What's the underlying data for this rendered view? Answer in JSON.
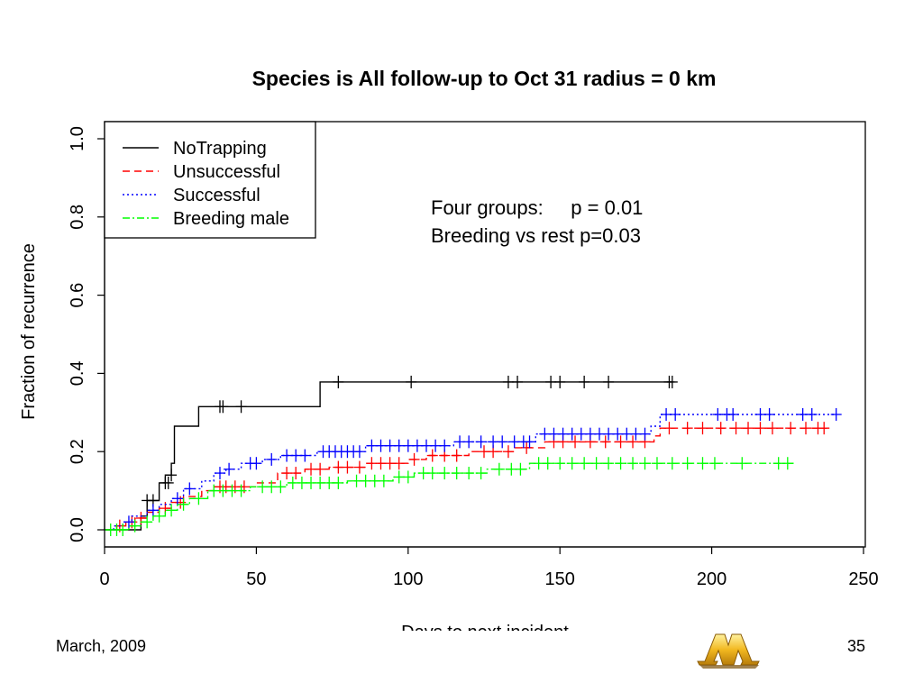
{
  "slide": {
    "footer_date": "March, 2009",
    "page_number": "35"
  },
  "chart_data": {
    "type": "line",
    "title": "Species is All follow-up to Oct 31 radius = 0 km",
    "xlabel": "Days to next incident",
    "ylabel": "Fraction of recurrence",
    "xlim": [
      0,
      250
    ],
    "ylim": [
      0,
      1.0
    ],
    "xticks": [
      0,
      50,
      100,
      150,
      200,
      250
    ],
    "yticks": [
      0.0,
      0.2,
      0.4,
      0.6,
      0.8,
      1.0
    ],
    "grid": false,
    "legend_position": "top-left",
    "annotations": [
      "Four groups:     p = 0.01",
      "Breeding vs rest p=0.03"
    ],
    "series": [
      {
        "name": "NoTrapping",
        "color": "#000000",
        "dash": "",
        "steps": [
          [
            0,
            0
          ],
          [
            12,
            0
          ],
          [
            12,
            0.035
          ],
          [
            14,
            0.035
          ],
          [
            14,
            0.075
          ],
          [
            18,
            0.075
          ],
          [
            18,
            0.12
          ],
          [
            20,
            0.12
          ],
          [
            20,
            0.14
          ],
          [
            22,
            0.14
          ],
          [
            22,
            0.17
          ],
          [
            23,
            0.17
          ],
          [
            23,
            0.265
          ],
          [
            31,
            0.265
          ],
          [
            31,
            0.315
          ],
          [
            71,
            0.315
          ],
          [
            71,
            0.378
          ],
          [
            187,
            0.378
          ]
        ],
        "censors": [
          [
            14,
            0.075
          ],
          [
            16,
            0.075
          ],
          [
            20,
            0.12
          ],
          [
            21,
            0.12
          ],
          [
            22,
            0.14
          ],
          [
            38,
            0.315
          ],
          [
            39,
            0.315
          ],
          [
            45,
            0.315
          ],
          [
            77,
            0.378
          ],
          [
            101,
            0.378
          ],
          [
            133,
            0.378
          ],
          [
            136,
            0.378
          ],
          [
            147,
            0.378
          ],
          [
            150,
            0.378
          ],
          [
            158,
            0.378
          ],
          [
            166,
            0.378
          ],
          [
            186,
            0.378
          ],
          [
            187,
            0.378
          ]
        ]
      },
      {
        "name": "Unsuccessful",
        "color": "#ff0000",
        "dash": "8,5",
        "steps": [
          [
            0,
            0
          ],
          [
            4,
            0
          ],
          [
            4,
            0.01
          ],
          [
            7,
            0.01
          ],
          [
            7,
            0.02
          ],
          [
            10,
            0.02
          ],
          [
            10,
            0.03
          ],
          [
            14,
            0.03
          ],
          [
            14,
            0.045
          ],
          [
            18,
            0.045
          ],
          [
            18,
            0.055
          ],
          [
            22,
            0.055
          ],
          [
            22,
            0.07
          ],
          [
            26,
            0.07
          ],
          [
            26,
            0.085
          ],
          [
            32,
            0.085
          ],
          [
            32,
            0.1
          ],
          [
            36,
            0.1
          ],
          [
            36,
            0.11
          ],
          [
            50,
            0.11
          ],
          [
            50,
            0.12
          ],
          [
            57,
            0.12
          ],
          [
            57,
            0.145
          ],
          [
            66,
            0.145
          ],
          [
            66,
            0.155
          ],
          [
            74,
            0.155
          ],
          [
            74,
            0.16
          ],
          [
            86,
            0.16
          ],
          [
            86,
            0.17
          ],
          [
            100,
            0.17
          ],
          [
            100,
            0.18
          ],
          [
            106,
            0.18
          ],
          [
            106,
            0.19
          ],
          [
            120,
            0.19
          ],
          [
            120,
            0.2
          ],
          [
            135,
            0.2
          ],
          [
            135,
            0.21
          ],
          [
            145,
            0.21
          ],
          [
            145,
            0.225
          ],
          [
            181,
            0.225
          ],
          [
            181,
            0.24
          ],
          [
            183,
            0.24
          ],
          [
            183,
            0.26
          ],
          [
            238,
            0.26
          ]
        ],
        "censors": [
          [
            5,
            0.01
          ],
          [
            9,
            0.02
          ],
          [
            12,
            0.03
          ],
          [
            20,
            0.055
          ],
          [
            25,
            0.07
          ],
          [
            38,
            0.11
          ],
          [
            40,
            0.11
          ],
          [
            43,
            0.11
          ],
          [
            46,
            0.11
          ],
          [
            60,
            0.145
          ],
          [
            63,
            0.145
          ],
          [
            68,
            0.155
          ],
          [
            71,
            0.155
          ],
          [
            77,
            0.16
          ],
          [
            80,
            0.16
          ],
          [
            84,
            0.16
          ],
          [
            88,
            0.17
          ],
          [
            91,
            0.17
          ],
          [
            94,
            0.17
          ],
          [
            97,
            0.17
          ],
          [
            102,
            0.18
          ],
          [
            108,
            0.19
          ],
          [
            112,
            0.19
          ],
          [
            116,
            0.19
          ],
          [
            125,
            0.2
          ],
          [
            128,
            0.2
          ],
          [
            133,
            0.2
          ],
          [
            139,
            0.21
          ],
          [
            148,
            0.225
          ],
          [
            151,
            0.225
          ],
          [
            155,
            0.225
          ],
          [
            160,
            0.225
          ],
          [
            165,
            0.225
          ],
          [
            170,
            0.225
          ],
          [
            174,
            0.225
          ],
          [
            178,
            0.225
          ],
          [
            186,
            0.26
          ],
          [
            192,
            0.26
          ],
          [
            197,
            0.26
          ],
          [
            203,
            0.26
          ],
          [
            208,
            0.26
          ],
          [
            212,
            0.26
          ],
          [
            216,
            0.26
          ],
          [
            220,
            0.26
          ],
          [
            226,
            0.26
          ],
          [
            231,
            0.26
          ],
          [
            235,
            0.26
          ],
          [
            237,
            0.26
          ]
        ]
      },
      {
        "name": "Successful",
        "color": "#0000ff",
        "dash": "2,3",
        "steps": [
          [
            0,
            0
          ],
          [
            3,
            0
          ],
          [
            3,
            0.01
          ],
          [
            6,
            0.01
          ],
          [
            6,
            0.02
          ],
          [
            9,
            0.02
          ],
          [
            9,
            0.035
          ],
          [
            14,
            0.035
          ],
          [
            14,
            0.05
          ],
          [
            18,
            0.05
          ],
          [
            18,
            0.065
          ],
          [
            22,
            0.065
          ],
          [
            22,
            0.08
          ],
          [
            26,
            0.08
          ],
          [
            26,
            0.105
          ],
          [
            32,
            0.105
          ],
          [
            32,
            0.125
          ],
          [
            36,
            0.125
          ],
          [
            36,
            0.145
          ],
          [
            40,
            0.145
          ],
          [
            40,
            0.155
          ],
          [
            45,
            0.155
          ],
          [
            45,
            0.17
          ],
          [
            52,
            0.17
          ],
          [
            52,
            0.18
          ],
          [
            58,
            0.18
          ],
          [
            58,
            0.19
          ],
          [
            70,
            0.19
          ],
          [
            70,
            0.2
          ],
          [
            86,
            0.2
          ],
          [
            86,
            0.215
          ],
          [
            115,
            0.215
          ],
          [
            115,
            0.225
          ],
          [
            142,
            0.225
          ],
          [
            142,
            0.245
          ],
          [
            180,
            0.245
          ],
          [
            180,
            0.265
          ],
          [
            183,
            0.265
          ],
          [
            183,
            0.295
          ],
          [
            241,
            0.295
          ]
        ],
        "censors": [
          [
            8,
            0.02
          ],
          [
            16,
            0.05
          ],
          [
            24,
            0.08
          ],
          [
            28,
            0.105
          ],
          [
            38,
            0.145
          ],
          [
            41,
            0.155
          ],
          [
            48,
            0.17
          ],
          [
            50,
            0.17
          ],
          [
            55,
            0.18
          ],
          [
            60,
            0.19
          ],
          [
            63,
            0.19
          ],
          [
            66,
            0.19
          ],
          [
            72,
            0.2
          ],
          [
            74,
            0.2
          ],
          [
            76,
            0.2
          ],
          [
            78,
            0.2
          ],
          [
            80,
            0.2
          ],
          [
            82,
            0.2
          ],
          [
            84,
            0.2
          ],
          [
            88,
            0.215
          ],
          [
            91,
            0.215
          ],
          [
            94,
            0.215
          ],
          [
            97,
            0.215
          ],
          [
            100,
            0.215
          ],
          [
            103,
            0.215
          ],
          [
            106,
            0.215
          ],
          [
            109,
            0.215
          ],
          [
            112,
            0.215
          ],
          [
            117,
            0.225
          ],
          [
            120,
            0.225
          ],
          [
            124,
            0.225
          ],
          [
            128,
            0.225
          ],
          [
            131,
            0.225
          ],
          [
            135,
            0.225
          ],
          [
            138,
            0.225
          ],
          [
            140,
            0.225
          ],
          [
            145,
            0.245
          ],
          [
            148,
            0.245
          ],
          [
            151,
            0.245
          ],
          [
            154,
            0.245
          ],
          [
            157,
            0.245
          ],
          [
            160,
            0.245
          ],
          [
            163,
            0.245
          ],
          [
            166,
            0.245
          ],
          [
            169,
            0.245
          ],
          [
            172,
            0.245
          ],
          [
            175,
            0.245
          ],
          [
            178,
            0.245
          ],
          [
            185,
            0.295
          ],
          [
            188,
            0.295
          ],
          [
            202,
            0.295
          ],
          [
            205,
            0.295
          ],
          [
            207,
            0.295
          ],
          [
            216,
            0.295
          ],
          [
            219,
            0.295
          ],
          [
            230,
            0.295
          ],
          [
            233,
            0.295
          ],
          [
            241,
            0.295
          ]
        ]
      },
      {
        "name": "Breeding male",
        "color": "#00ff00",
        "dash": "8,3,2,3",
        "steps": [
          [
            0,
            0
          ],
          [
            8,
            0
          ],
          [
            8,
            0.01
          ],
          [
            12,
            0.01
          ],
          [
            12,
            0.02
          ],
          [
            16,
            0.02
          ],
          [
            16,
            0.035
          ],
          [
            20,
            0.035
          ],
          [
            20,
            0.05
          ],
          [
            24,
            0.05
          ],
          [
            24,
            0.065
          ],
          [
            28,
            0.065
          ],
          [
            28,
            0.08
          ],
          [
            34,
            0.08
          ],
          [
            34,
            0.1
          ],
          [
            48,
            0.1
          ],
          [
            48,
            0.11
          ],
          [
            60,
            0.11
          ],
          [
            60,
            0.12
          ],
          [
            80,
            0.12
          ],
          [
            80,
            0.125
          ],
          [
            95,
            0.125
          ],
          [
            95,
            0.135
          ],
          [
            102,
            0.135
          ],
          [
            102,
            0.145
          ],
          [
            126,
            0.145
          ],
          [
            126,
            0.155
          ],
          [
            140,
            0.155
          ],
          [
            140,
            0.17
          ],
          [
            227,
            0.17
          ]
        ],
        "censors": [
          [
            2,
            0.0
          ],
          [
            4,
            0.0
          ],
          [
            6,
            0.0
          ],
          [
            10,
            0.01
          ],
          [
            14,
            0.02
          ],
          [
            18,
            0.035
          ],
          [
            22,
            0.05
          ],
          [
            26,
            0.065
          ],
          [
            31,
            0.08
          ],
          [
            36,
            0.1
          ],
          [
            39,
            0.1
          ],
          [
            42,
            0.1
          ],
          [
            45,
            0.1
          ],
          [
            52,
            0.11
          ],
          [
            55,
            0.11
          ],
          [
            58,
            0.11
          ],
          [
            62,
            0.12
          ],
          [
            65,
            0.12
          ],
          [
            68,
            0.12
          ],
          [
            71,
            0.12
          ],
          [
            74,
            0.12
          ],
          [
            77,
            0.12
          ],
          [
            83,
            0.125
          ],
          [
            86,
            0.125
          ],
          [
            89,
            0.125
          ],
          [
            92,
            0.125
          ],
          [
            97,
            0.135
          ],
          [
            100,
            0.135
          ],
          [
            105,
            0.145
          ],
          [
            108,
            0.145
          ],
          [
            112,
            0.145
          ],
          [
            116,
            0.145
          ],
          [
            120,
            0.145
          ],
          [
            124,
            0.145
          ],
          [
            130,
            0.155
          ],
          [
            134,
            0.155
          ],
          [
            137,
            0.155
          ],
          [
            143,
            0.17
          ],
          [
            146,
            0.17
          ],
          [
            150,
            0.17
          ],
          [
            154,
            0.17
          ],
          [
            158,
            0.17
          ],
          [
            162,
            0.17
          ],
          [
            166,
            0.17
          ],
          [
            170,
            0.17
          ],
          [
            174,
            0.17
          ],
          [
            178,
            0.17
          ],
          [
            182,
            0.17
          ],
          [
            187,
            0.17
          ],
          [
            192,
            0.17
          ],
          [
            197,
            0.17
          ],
          [
            201,
            0.17
          ],
          [
            210,
            0.17
          ],
          [
            222,
            0.17
          ],
          [
            225,
            0.17
          ]
        ]
      }
    ]
  }
}
